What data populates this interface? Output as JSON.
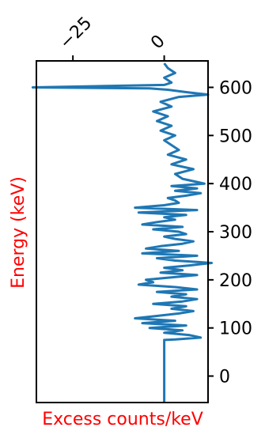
{
  "chart_data": {
    "type": "line",
    "orientation": "horizontal-values-vertical-energy",
    "xlabel": "Excess counts/keV",
    "ylabel": "Energy (keV)",
    "label_color": "#ff0000",
    "line_color": "#1f77b4",
    "xlim": [
      -35,
      12
    ],
    "ylim": [
      -55,
      655
    ],
    "x_ticks": [
      -25,
      0
    ],
    "x_tick_labels": [
      "−25",
      "0"
    ],
    "x_axis_position": "top",
    "y_ticks": [
      0,
      100,
      200,
      300,
      400,
      500,
      600
    ],
    "y_tick_labels": [
      "0",
      "100",
      "200",
      "300",
      "400",
      "500",
      "600"
    ],
    "y_axis_position": "right",
    "grid": false,
    "series": [
      {
        "energy": [
          -55,
          0,
          60,
          75,
          76,
          80,
          85,
          90,
          95,
          100,
          105,
          110,
          115,
          120,
          125,
          130,
          135,
          140,
          145,
          150,
          155,
          160,
          165,
          170,
          175,
          180,
          185,
          190,
          195,
          200,
          205,
          210,
          215,
          220,
          225,
          230,
          235,
          240,
          245,
          250,
          255,
          260,
          265,
          270,
          275,
          280,
          285,
          290,
          295,
          300,
          305,
          310,
          315,
          320,
          325,
          330,
          335,
          340,
          345,
          350,
          355,
          360,
          365,
          370,
          375,
          380,
          385,
          390,
          395,
          400,
          410,
          420,
          430,
          440,
          450,
          460,
          470,
          480,
          490,
          500,
          510,
          520,
          530,
          540,
          550,
          560,
          570,
          580,
          585,
          590,
          595,
          598,
          600,
          605,
          610,
          620,
          630,
          640,
          650
        ],
        "values": [
          0,
          0,
          0,
          0,
          3,
          10,
          7,
          0,
          5,
          -4,
          6,
          -6,
          3,
          -8,
          -2,
          4,
          8,
          2,
          6,
          -3,
          5,
          9,
          2,
          6,
          -2,
          9,
          3,
          -7,
          -3,
          -5,
          2,
          9,
          -1,
          5,
          0,
          7,
          13,
          3,
          -2,
          9,
          -6,
          4,
          -5,
          -1,
          5,
          8,
          3,
          0,
          6,
          4,
          -3,
          5,
          -6,
          -2,
          3,
          0,
          6,
          -7,
          9,
          -8,
          0,
          4,
          3,
          1,
          6,
          10,
          3,
          9,
          2,
          11,
          5,
          3,
          8,
          2,
          6,
          1,
          4,
          2,
          0,
          3,
          -1,
          2,
          -2,
          1,
          -3,
          2,
          -1,
          4,
          12,
          6,
          1,
          -4,
          -36,
          0,
          2,
          0,
          3,
          1,
          0
        ]
      }
    ]
  }
}
